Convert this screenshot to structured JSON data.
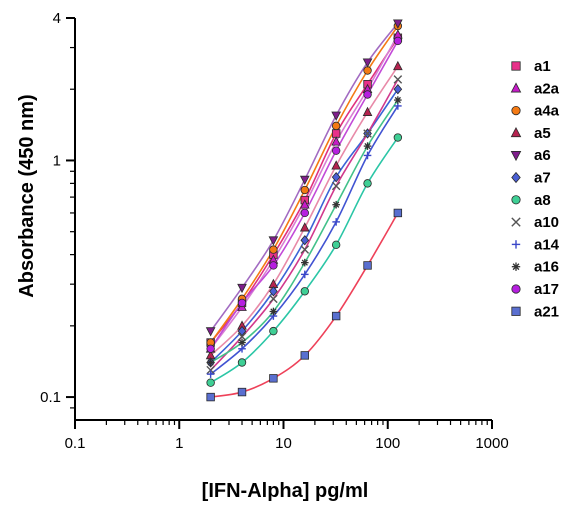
{
  "chart_data": {
    "type": "scatter",
    "title": "",
    "xlabel": "[IFN-Alpha] pg/ml",
    "ylabel": "Absorbance (450 nm)",
    "xscale": "log",
    "yscale": "log",
    "xlim": [
      0.1,
      1000
    ],
    "ylim": [
      0.08,
      4
    ],
    "xticks": [
      "0.1",
      "1",
      "10",
      "100",
      "1000"
    ],
    "yticks": [
      "0.1",
      "1",
      "4"
    ],
    "legend_position": "right",
    "grid": false,
    "x": [
      2,
      4,
      8,
      16,
      32,
      64,
      125
    ],
    "series": [
      {
        "name": "a1",
        "color": "#e8318a",
        "marker": "square",
        "values": [
          0.17,
          0.25,
          0.4,
          0.68,
          1.3,
          2.1,
          3.3
        ]
      },
      {
        "name": "a2a",
        "color": "#c61cc8",
        "marker": "triangle-up",
        "values": [
          0.16,
          0.24,
          0.38,
          0.65,
          1.2,
          2.0,
          3.4
        ]
      },
      {
        "name": "a4a",
        "color": "#f47a14",
        "marker": "circle",
        "values": [
          0.17,
          0.26,
          0.42,
          0.75,
          1.4,
          2.4,
          3.7
        ]
      },
      {
        "name": "a5",
        "color": "#b5234f",
        "marker": "triangle-up",
        "values": [
          0.15,
          0.2,
          0.3,
          0.52,
          0.95,
          1.6,
          2.5
        ]
      },
      {
        "name": "a6",
        "color": "#7f1e8c",
        "marker": "triangle-down",
        "values": [
          0.19,
          0.29,
          0.46,
          0.83,
          1.55,
          2.6,
          3.8
        ]
      },
      {
        "name": "a7",
        "color": "#4a5fd4",
        "marker": "diamond",
        "values": [
          0.14,
          0.19,
          0.28,
          0.46,
          0.85,
          1.3,
          2.0
        ]
      },
      {
        "name": "a8",
        "color": "#3fcf95",
        "marker": "circle",
        "values": [
          0.115,
          0.14,
          0.19,
          0.28,
          0.44,
          0.8,
          1.25
        ]
      },
      {
        "name": "a10",
        "color": "#555555",
        "marker": "x",
        "values": [
          0.13,
          0.18,
          0.26,
          0.42,
          0.78,
          1.3,
          2.2
        ]
      },
      {
        "name": "a14",
        "color": "#3a47c8",
        "marker": "plus",
        "values": [
          0.125,
          0.16,
          0.22,
          0.33,
          0.55,
          1.05,
          1.7
        ]
      },
      {
        "name": "a16",
        "color": "#333333",
        "marker": "asterisk",
        "values": [
          0.14,
          0.17,
          0.23,
          0.37,
          0.65,
          1.15,
          1.8
        ]
      },
      {
        "name": "a17",
        "color": "#b61fe0",
        "marker": "circle",
        "values": [
          0.16,
          0.25,
          0.36,
          0.6,
          1.1,
          1.9,
          3.2
        ]
      },
      {
        "name": "a21",
        "color": "#5a6fd0",
        "marker": "square",
        "values": [
          0.1,
          0.105,
          0.12,
          0.15,
          0.22,
          0.36,
          0.6
        ]
      }
    ]
  },
  "curve_colors": {
    "a1": "#e0317e",
    "a2a": "#d77fd4",
    "a4a": "#f47a14",
    "a5": "#e88aa8",
    "a6": "#a26bc2",
    "a7": "#3c63d6",
    "a8": "#2bc6a6",
    "a10": "#d1398c",
    "a14": "#4153d2",
    "a16": "#42c18a",
    "a17": "#c24ad8",
    "a21": "#ee4159"
  }
}
